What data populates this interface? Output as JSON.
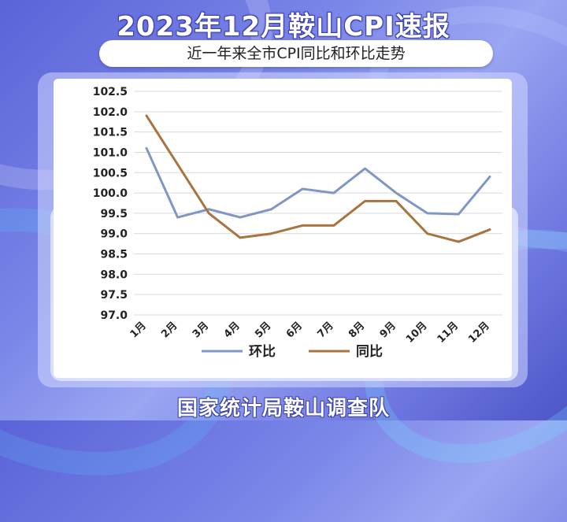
{
  "header": {
    "title": "2023年12月鞍山CPI速报",
    "subtitle": "近一年来全市CPI同比和环比走势"
  },
  "footer": {
    "source": "国家统计局鞍山调查队"
  },
  "chart_data": {
    "type": "line",
    "title": "",
    "xlabel": "",
    "ylabel": "",
    "categories": [
      "1月",
      "2月",
      "3月",
      "4月",
      "5月",
      "6月",
      "7月",
      "8月",
      "9月",
      "10月",
      "11月",
      "12月"
    ],
    "ylim": [
      97.0,
      102.5
    ],
    "yticks": [
      "102.5",
      "102.0",
      "101.5",
      "101.0",
      "100.5",
      "100.0",
      "99.5",
      "99.0",
      "98.5",
      "98.0",
      "97.5",
      "97.0"
    ],
    "grid": true,
    "legend_position": "bottom",
    "series": [
      {
        "name": "环比",
        "color": "#7f97c5",
        "values": [
          101.1,
          99.4,
          99.6,
          99.4,
          99.6,
          100.1,
          100.0,
          100.6,
          100.0,
          99.5,
          99.48,
          100.4
        ]
      },
      {
        "name": "同比",
        "color": "#a8743f",
        "values": [
          101.9,
          100.7,
          99.5,
          98.9,
          99.0,
          99.2,
          99.2,
          99.8,
          99.8,
          99.0,
          98.8,
          99.1
        ]
      }
    ]
  }
}
